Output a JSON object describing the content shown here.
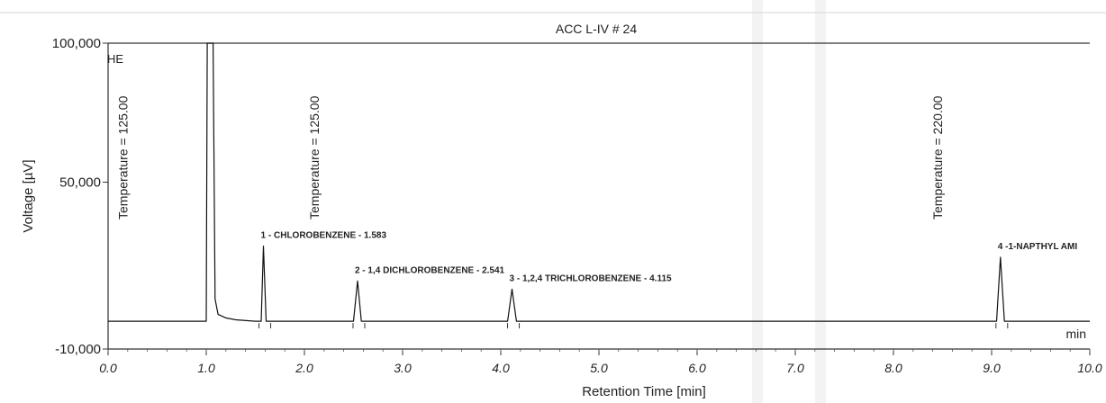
{
  "chart_data": {
    "type": "line",
    "title": "ACC L-IV # 24",
    "xlabel": "Retention Time [min]",
    "ylabel": "Voltage [µV]",
    "x_unit_label": "min",
    "corner_label": "HE",
    "xlim": [
      0.0,
      10.0
    ],
    "ylim": [
      -10000,
      100000
    ],
    "xticks": [
      0.0,
      1.0,
      2.0,
      3.0,
      4.0,
      5.0,
      6.0,
      7.0,
      8.0,
      9.0,
      10.0
    ],
    "xtick_labels": [
      "0.0",
      "1.0",
      "2.0",
      "3.0",
      "4.0",
      "5.0",
      "6.0",
      "7.0",
      "8.0",
      "9.0",
      "10.0"
    ],
    "yticks": [
      100000,
      50000,
      -10000
    ],
    "ytick_labels": [
      "100,000",
      "50,000",
      "-10,000"
    ],
    "grid": false,
    "baseline": 0,
    "solvent_peak": {
      "start": 1.0,
      "end": 1.09,
      "top": 100000
    },
    "series": [
      {
        "x": [
          0.0,
          0.95,
          1.0,
          1.01,
          1.07,
          1.09,
          1.12,
          1.2,
          1.3,
          1.5,
          1.56,
          1.583,
          1.61,
          1.65,
          2.5,
          2.541,
          2.58,
          4.07,
          4.115,
          4.16,
          9.05,
          9.09,
          9.13,
          10.0
        ],
        "y": [
          0,
          0,
          0,
          100000,
          100000,
          8000,
          2500,
          1200,
          500,
          0,
          0,
          27000,
          0,
          0,
          0,
          14500,
          0,
          0,
          11500,
          0,
          0,
          23000,
          0,
          0
        ]
      }
    ],
    "peaks": [
      {
        "label": "1 - CHLOROBENZENE - 1.583",
        "x": 1.583,
        "y": 27000
      },
      {
        "label": "2 - 1,4 DICHLOROBENZENE - 2.541",
        "x": 2.541,
        "y": 14500
      },
      {
        "label": "3 - 1,2,4 TRICHLOROBENZENE - 4.115",
        "x": 4.115,
        "y": 11500
      },
      {
        "label": "4 -1-NAPTHYL AMI",
        "x": 9.09,
        "y": 23000
      }
    ],
    "temperature_annotations": [
      {
        "label": "Temperature = 125.00",
        "x": 0.15
      },
      {
        "label": "Temperature = 125.00",
        "x": 2.1
      },
      {
        "label": "Temperature = 220.00",
        "x": 8.45
      }
    ]
  }
}
